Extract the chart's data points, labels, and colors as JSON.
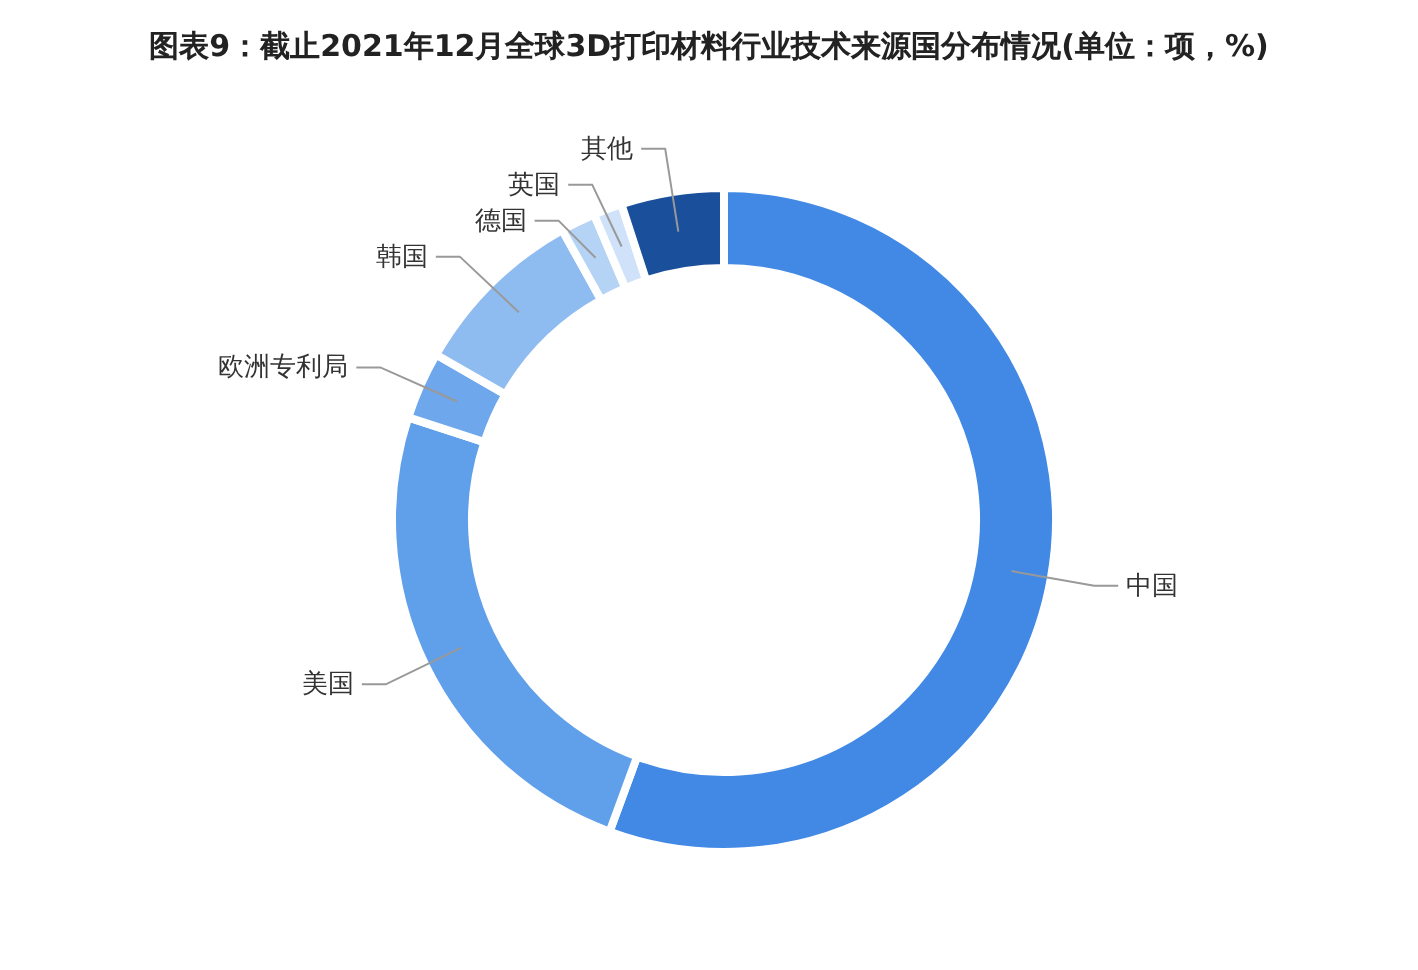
{
  "chart_data": {
    "type": "donut",
    "title": "图表9：截止2021年12月全球3D打印材料行业技术来源国分布情况(单位：项，%)",
    "categories": [
      "中国",
      "美国",
      "欧洲专利局",
      "韩国",
      "德国",
      "英国",
      "其他"
    ],
    "values": [
      55.6,
      24.4,
      3.3,
      8.6,
      1.7,
      1.4,
      5.0
    ],
    "colors": [
      "#4189e5",
      "#609fe9",
      "#6ea7eb",
      "#8fbcf0",
      "#b5d3f5",
      "#cfe2f9",
      "#1a4f9c"
    ]
  }
}
